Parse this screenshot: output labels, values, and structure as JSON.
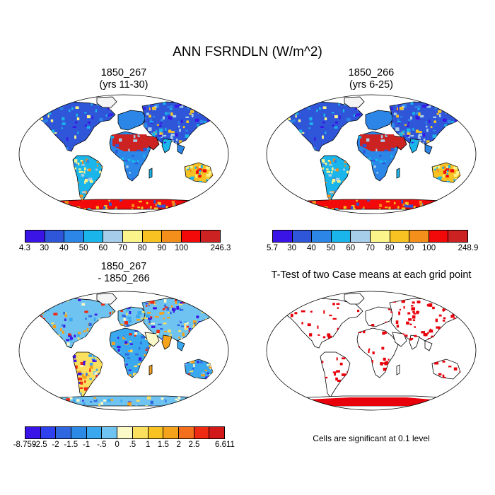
{
  "title": "ANN FSRNDLN (W/m^2)",
  "panels": [
    {
      "title_line1": "1850_267",
      "title_line2": "(yrs 11-30)"
    },
    {
      "title_line1": "1850_266",
      "title_line2": "(yrs 6-25)"
    },
    {
      "title_line1": "1850_267",
      "title_line2": "- 1850_266"
    },
    {
      "title_line1": "T-Test of two Case means at each grid point",
      "title_line2": ""
    }
  ],
  "colorbars": {
    "case1": {
      "labels": [
        "4.3",
        "30",
        "40",
        "50",
        "60",
        "70",
        "80",
        "90",
        "100",
        "246.3"
      ],
      "colors": [
        "#3a14e6",
        "#2f56d8",
        "#2b86e8",
        "#1ab5ea",
        "#a6cdea",
        "#fbf48a",
        "#f8c322",
        "#f58f1b",
        "#f20a0a",
        "#cc2222"
      ]
    },
    "case2": {
      "labels": [
        "5.7",
        "30",
        "40",
        "50",
        "60",
        "70",
        "80",
        "90",
        "100",
        "248.9"
      ],
      "colors": [
        "#3a14e6",
        "#2f56d8",
        "#2b86e8",
        "#1ab5ea",
        "#a6cdea",
        "#fbf48a",
        "#f8c322",
        "#f58f1b",
        "#f20a0a",
        "#cc2222"
      ]
    },
    "diff": {
      "labels": [
        "-8.759",
        "-2.5",
        "-2",
        "-1.5",
        "-1",
        "-.5",
        "0",
        ".5",
        "1",
        "1.5",
        "2",
        "2.5",
        "6.611"
      ],
      "colors": [
        "#3a14e6",
        "#2f40ee",
        "#2f67e0",
        "#2b8ae6",
        "#3aa8ee",
        "#6fc3f0",
        "#fbf9c8",
        "#fbe060",
        "#f8c322",
        "#f5a31b",
        "#f46f1b",
        "#ee2a12",
        "#d21818"
      ]
    }
  },
  "significance_note": "Cells are significant at 0.1 level",
  "colors": {
    "significant": "#e8000b",
    "coast": "#000000"
  }
}
